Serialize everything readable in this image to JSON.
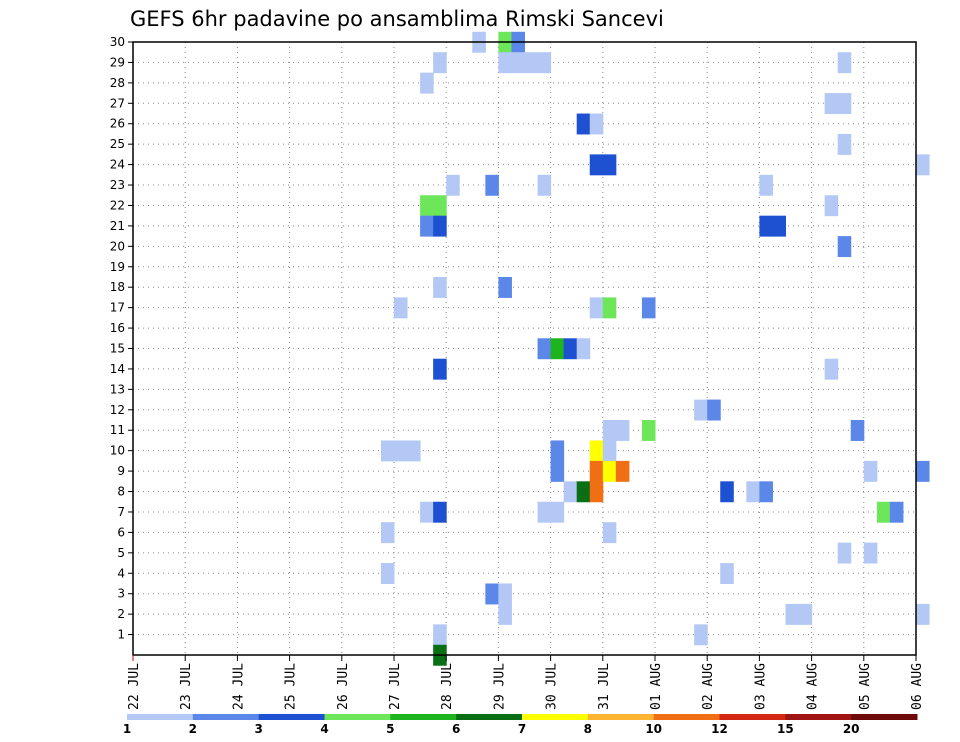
{
  "chart_data": {
    "type": "heatmap",
    "title": "GEFS 6hr padavine po ansamblima Rimski Sancevi",
    "xlabel": "",
    "ylabel": "",
    "x_tick_labels": [
      "22 JUL",
      "23 JUL",
      "24 JUL",
      "25 JUL",
      "26 JUL",
      "27 JUL",
      "28 JUL",
      "29 JUL",
      "30 JUL",
      "31 JUL",
      "01 AUG",
      "02 AUG",
      "03 AUG",
      "04 AUG",
      "05 AUG",
      "06 AUG"
    ],
    "xlim_days": [
      0,
      15
    ],
    "time_step_hours": 6,
    "ylim": [
      0,
      30
    ],
    "y_ticks": [
      1,
      2,
      3,
      4,
      5,
      6,
      7,
      8,
      9,
      10,
      11,
      12,
      13,
      14,
      15,
      16,
      17,
      18,
      19,
      20,
      21,
      22,
      23,
      24,
      25,
      26,
      27,
      28,
      29,
      30
    ],
    "grid": "dotted",
    "colorbar": {
      "position": "bottom",
      "bins": [
        {
          "from": 1,
          "to": 2,
          "color": "#b4c8f5"
        },
        {
          "from": 2,
          "to": 3,
          "color": "#5a87e8"
        },
        {
          "from": 3,
          "to": 4,
          "color": "#1e50d2"
        },
        {
          "from": 4,
          "to": 5,
          "color": "#6ee65a"
        },
        {
          "from": 5,
          "to": 6,
          "color": "#1eb41e"
        },
        {
          "from": 6,
          "to": 7,
          "color": "#0a6e14"
        },
        {
          "from": 7,
          "to": 8,
          "color": "#ffff00"
        },
        {
          "from": 8,
          "to": 10,
          "color": "#ffb432"
        },
        {
          "from": 10,
          "to": 12,
          "color": "#f06e14"
        },
        {
          "from": 12,
          "to": 15,
          "color": "#d22814"
        },
        {
          "from": 15,
          "to": 20,
          "color": "#a01414"
        },
        {
          "from": 20,
          "to": null,
          "color": "#6e0a0a"
        }
      ],
      "labels": [
        "1",
        "2",
        "3",
        "4",
        "5",
        "6",
        "7",
        "8",
        "10",
        "12",
        "15",
        "20"
      ]
    },
    "cells_note": "member = ensemble number (y); day = days after 22 JUL 00Z (x); value = 6hr precipitation (mm)",
    "cells": [
      {
        "member": 30,
        "day": 6.5,
        "value": 1.5
      },
      {
        "member": 30,
        "day": 7.0,
        "value": 4.5
      },
      {
        "member": 30,
        "day": 7.25,
        "value": 2.5
      },
      {
        "member": 29,
        "day": 5.75,
        "value": 1.5
      },
      {
        "member": 29,
        "day": 7.0,
        "value": 1.5
      },
      {
        "member": 29,
        "day": 7.25,
        "value": 1.5
      },
      {
        "member": 29,
        "day": 7.5,
        "value": 1.5
      },
      {
        "member": 29,
        "day": 7.75,
        "value": 1.5
      },
      {
        "member": 29,
        "day": 13.5,
        "value": 1.5
      },
      {
        "member": 28,
        "day": 5.5,
        "value": 1.5
      },
      {
        "member": 27,
        "day": 13.25,
        "value": 1.5
      },
      {
        "member": 27,
        "day": 13.5,
        "value": 1.5
      },
      {
        "member": 26,
        "day": 8.5,
        "value": 3.5
      },
      {
        "member": 26,
        "day": 8.75,
        "value": 1.5
      },
      {
        "member": 25,
        "day": 13.5,
        "value": 1.5
      },
      {
        "member": 24,
        "day": 8.75,
        "value": 3.5
      },
      {
        "member": 24,
        "day": 9.0,
        "value": 3.5
      },
      {
        "member": 24,
        "day": 15.0,
        "value": 1.5
      },
      {
        "member": 23,
        "day": 6.0,
        "value": 1.5
      },
      {
        "member": 23,
        "day": 6.75,
        "value": 2.5
      },
      {
        "member": 23,
        "day": 7.75,
        "value": 1.5
      },
      {
        "member": 23,
        "day": 12.0,
        "value": 1.5
      },
      {
        "member": 22,
        "day": 5.5,
        "value": 4.5
      },
      {
        "member": 22,
        "day": 5.75,
        "value": 4.5
      },
      {
        "member": 22,
        "day": 13.25,
        "value": 1.5
      },
      {
        "member": 21,
        "day": 5.5,
        "value": 2.5
      },
      {
        "member": 21,
        "day": 5.75,
        "value": 3.5
      },
      {
        "member": 21,
        "day": 12.0,
        "value": 3.5
      },
      {
        "member": 21,
        "day": 12.25,
        "value": 3.5
      },
      {
        "member": 20,
        "day": 13.5,
        "value": 2.5
      },
      {
        "member": 18,
        "day": 5.75,
        "value": 1.5
      },
      {
        "member": 18,
        "day": 7.0,
        "value": 2.5
      },
      {
        "member": 17,
        "day": 5.0,
        "value": 1.5
      },
      {
        "member": 17,
        "day": 8.75,
        "value": 1.5
      },
      {
        "member": 17,
        "day": 9.0,
        "value": 4.5
      },
      {
        "member": 17,
        "day": 9.75,
        "value": 2.5
      },
      {
        "member": 15,
        "day": 7.75,
        "value": 2.5
      },
      {
        "member": 15,
        "day": 8.0,
        "value": 5.5
      },
      {
        "member": 15,
        "day": 8.25,
        "value": 3.5
      },
      {
        "member": 15,
        "day": 8.5,
        "value": 1.5
      },
      {
        "member": 14,
        "day": 5.75,
        "value": 3.5
      },
      {
        "member": 14,
        "day": 13.25,
        "value": 1.5
      },
      {
        "member": 12,
        "day": 10.75,
        "value": 1.5
      },
      {
        "member": 12,
        "day": 11.0,
        "value": 2.5
      },
      {
        "member": 11,
        "day": 9.0,
        "value": 1.5
      },
      {
        "member": 11,
        "day": 9.25,
        "value": 1.5
      },
      {
        "member": 11,
        "day": 9.75,
        "value": 4.5
      },
      {
        "member": 11,
        "day": 13.75,
        "value": 2.5
      },
      {
        "member": 10,
        "day": 4.75,
        "value": 1.5
      },
      {
        "member": 10,
        "day": 5.0,
        "value": 1.5
      },
      {
        "member": 10,
        "day": 5.25,
        "value": 1.5
      },
      {
        "member": 10,
        "day": 8.0,
        "value": 2.5
      },
      {
        "member": 10,
        "day": 8.75,
        "value": 7.5
      },
      {
        "member": 10,
        "day": 9.0,
        "value": 1.5
      },
      {
        "member": 9,
        "day": 8.0,
        "value": 2.5
      },
      {
        "member": 9,
        "day": 8.75,
        "value": 11
      },
      {
        "member": 9,
        "day": 9.0,
        "value": 7.5
      },
      {
        "member": 9,
        "day": 9.25,
        "value": 11
      },
      {
        "member": 9,
        "day": 14.0,
        "value": 1.5
      },
      {
        "member": 9,
        "day": 15.0,
        "value": 2.5
      },
      {
        "member": 8,
        "day": 8.25,
        "value": 1.5
      },
      {
        "member": 8,
        "day": 8.5,
        "value": 6.5
      },
      {
        "member": 8,
        "day": 8.75,
        "value": 11
      },
      {
        "member": 8,
        "day": 11.25,
        "value": 3.5
      },
      {
        "member": 8,
        "day": 11.75,
        "value": 1.5
      },
      {
        "member": 8,
        "day": 12.0,
        "value": 2.5
      },
      {
        "member": 7,
        "day": 5.5,
        "value": 1.5
      },
      {
        "member": 7,
        "day": 5.75,
        "value": 3.5
      },
      {
        "member": 7,
        "day": 7.75,
        "value": 1.5
      },
      {
        "member": 7,
        "day": 8.0,
        "value": 1.5
      },
      {
        "member": 7,
        "day": 14.25,
        "value": 4.5
      },
      {
        "member": 7,
        "day": 14.5,
        "value": 2.5
      },
      {
        "member": 6,
        "day": 4.75,
        "value": 1.5
      },
      {
        "member": 6,
        "day": 9.0,
        "value": 1.5
      },
      {
        "member": 5,
        "day": 13.5,
        "value": 1.5
      },
      {
        "member": 5,
        "day": 14.0,
        "value": 1.5
      },
      {
        "member": 4,
        "day": 4.75,
        "value": 1.5
      },
      {
        "member": 4,
        "day": 11.25,
        "value": 1.5
      },
      {
        "member": 3,
        "day": 6.75,
        "value": 2.5
      },
      {
        "member": 3,
        "day": 7.0,
        "value": 1.5
      },
      {
        "member": 2,
        "day": 7.0,
        "value": 1.5
      },
      {
        "member": 2,
        "day": 12.5,
        "value": 1.5
      },
      {
        "member": 2,
        "day": 12.75,
        "value": 1.5
      },
      {
        "member": 2,
        "day": 15.0,
        "value": 1.5
      },
      {
        "member": 1,
        "day": 5.75,
        "value": 1.5
      },
      {
        "member": 1,
        "day": 10.75,
        "value": 1.5
      },
      {
        "member": 0,
        "day": 5.75,
        "value": 6.5
      }
    ]
  }
}
